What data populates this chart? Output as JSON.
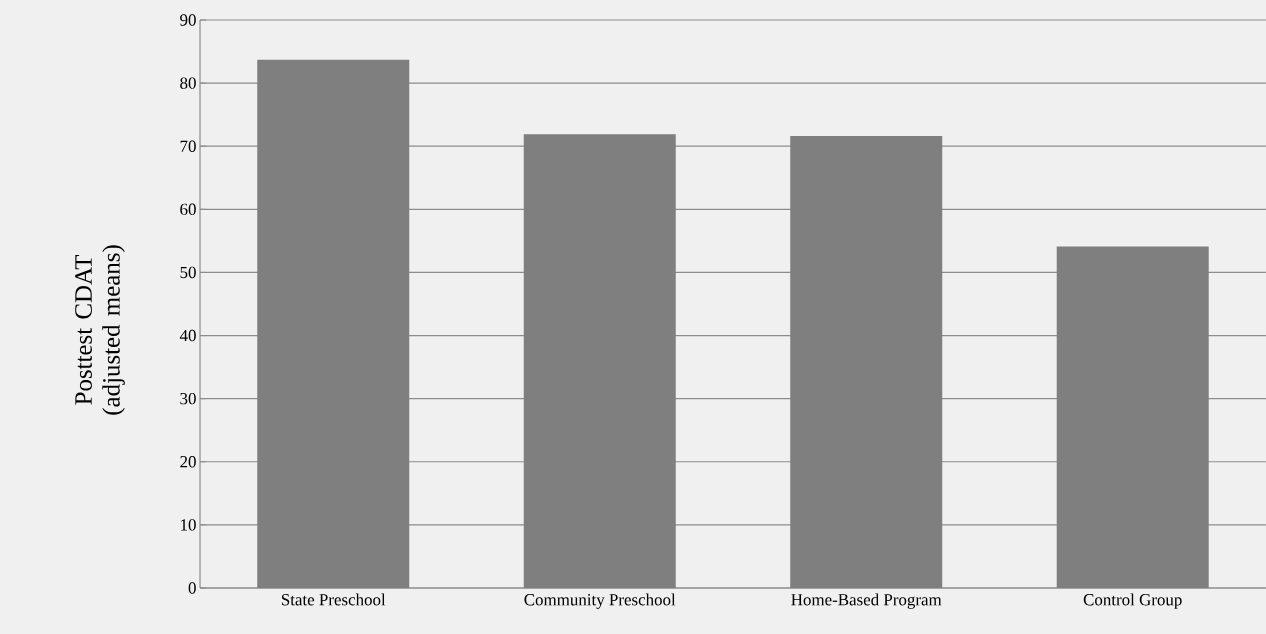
{
  "chart_data": {
    "type": "bar",
    "ylabel": "Posttest CDAT\n(adjusted means)",
    "categories": [
      "State Preschool",
      "Community Preschool",
      "Home-Based Program",
      "Control Group"
    ],
    "values": [
      83.7,
      71.9,
      71.6,
      54.1
    ],
    "color": "#7f7f7f",
    "ylim": [
      0,
      90
    ],
    "yticks": [
      0,
      10,
      20,
      30,
      40,
      50,
      60,
      70,
      80,
      90
    ],
    "grid": "y"
  }
}
